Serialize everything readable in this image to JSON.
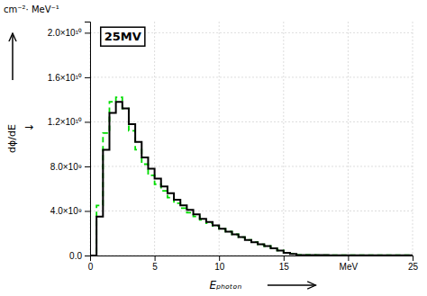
{
  "chart_data": {
    "type": "step",
    "title": "25MV",
    "xlabel": "Eₚₕₒₜₒₙ",
    "ylabel": "dϕ/dE",
    "annotations": [
      "cm⁻²· MeV⁻¹",
      "→"
    ],
    "xlim": [
      0,
      25
    ],
    "ylim": [
      0,
      21000000000.0
    ],
    "xticks": [
      0,
      5,
      10,
      15,
      {
        "value": 20,
        "label": "MeV"
      },
      25
    ],
    "yticks": [
      {
        "value": 0.0,
        "label": "0.0"
      },
      {
        "value": 4000000000.0,
        "label": "4.0×10⁹"
      },
      {
        "value": 8000000000.0,
        "label": "8.0×10⁹"
      },
      {
        "value": 12000000000.0,
        "label": "1.2×10¹⁰"
      },
      {
        "value": 16000000000.0,
        "label": "1.6×10¹⁰"
      },
      {
        "value": 20000000000.0,
        "label": "2.0×10¹⁰"
      }
    ],
    "grid": true,
    "x": [
      0.0,
      0.5,
      1.0,
      1.5,
      2.0,
      2.5,
      3.0,
      3.5,
      4.0,
      4.5,
      5.0,
      5.5,
      6.0,
      6.5,
      7.0,
      7.5,
      8.0,
      8.5,
      9.0,
      9.5,
      10.0,
      10.5,
      11.0,
      11.5,
      12.0,
      12.5,
      13.0,
      13.5,
      14.0,
      14.5,
      15.0,
      15.5,
      16.0,
      16.5,
      17.0,
      17.5,
      18.0,
      18.5,
      19.0,
      19.5,
      20.0,
      25.0
    ],
    "series": [
      {
        "color": "#00dd00",
        "line_style": "dashed",
        "values": [
          0.0,
          4500000000.0,
          11000000000.0,
          13800000000.0,
          14200000000.0,
          13200000000.0,
          11200000000.0,
          9500000000.0,
          8200000000.0,
          7200000000.0,
          6400000000.0,
          5800000000.0,
          5200000000.0,
          4700000000.0,
          4250000000.0,
          3850000000.0,
          3500000000.0,
          3200000000.0,
          2900000000.0,
          2650000000.0,
          2400000000.0,
          2150000000.0,
          1900000000.0,
          1650000000.0,
          1400000000.0,
          1200000000.0,
          1000000000.0,
          850000000.0,
          650000000.0,
          450000000.0,
          250000000.0,
          150000000.0,
          50000000.0,
          45000000.0,
          40000000.0,
          35000000.0,
          32000000.0,
          29000000.0,
          26000000.0,
          23000000.0,
          20000000.0,
          5000000.0
        ]
      },
      {
        "color": "#000000",
        "line_style": "solid",
        "values": [
          0.0,
          3500000000.0,
          9500000000.0,
          12800000000.0,
          13800000000.0,
          13200000000.0,
          11800000000.0,
          10200000000.0,
          8800000000.0,
          7800000000.0,
          6900000000.0,
          6200000000.0,
          5600000000.0,
          5000000000.0,
          4500000000.0,
          4100000000.0,
          3700000000.0,
          3300000000.0,
          3000000000.0,
          2700000000.0,
          2400000000.0,
          2150000000.0,
          1900000000.0,
          1650000000.0,
          1400000000.0,
          1200000000.0,
          1000000000.0,
          850000000.0,
          650000000.0,
          450000000.0,
          250000000.0,
          150000000.0,
          50000000.0,
          45000000.0,
          40000000.0,
          35000000.0,
          32000000.0,
          29000000.0,
          26000000.0,
          23000000.0,
          20000000.0,
          0.0
        ]
      }
    ]
  }
}
